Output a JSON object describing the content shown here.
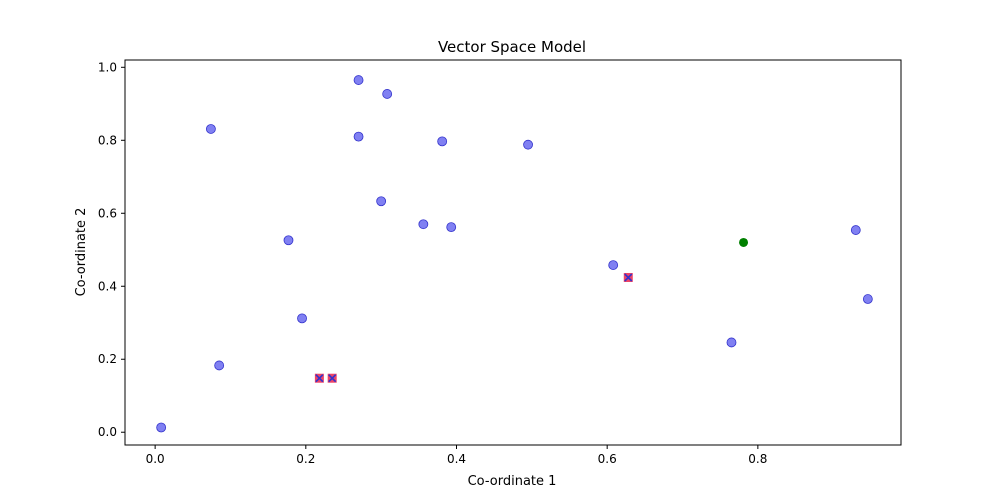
{
  "chart_data": {
    "type": "scatter",
    "title": "Vector Space Model",
    "xlabel": "Co-ordinate 1",
    "ylabel": "Co-ordinate 2",
    "xlim": [
      -0.04,
      0.99
    ],
    "ylim": [
      -0.035,
      1.02
    ],
    "xticks": [
      "0.0",
      "0.2",
      "0.4",
      "0.6",
      "0.8"
    ],
    "yticks": [
      "0.0",
      "0.2",
      "0.4",
      "0.6",
      "0.8",
      "1.0"
    ],
    "grid": false,
    "series": [
      {
        "marker": "circle",
        "color": "#5555ee",
        "points": [
          [
            0.008,
            0.013
          ],
          [
            0.085,
            0.183
          ],
          [
            0.074,
            0.831
          ],
          [
            0.177,
            0.526
          ],
          [
            0.195,
            0.312
          ],
          [
            0.27,
            0.965
          ],
          [
            0.27,
            0.81
          ],
          [
            0.308,
            0.927
          ],
          [
            0.3,
            0.633
          ],
          [
            0.356,
            0.57
          ],
          [
            0.381,
            0.797
          ],
          [
            0.393,
            0.562
          ],
          [
            0.495,
            0.788
          ],
          [
            0.608,
            0.458
          ],
          [
            0.765,
            0.246
          ],
          [
            0.93,
            0.554
          ],
          [
            0.946,
            0.365
          ]
        ]
      },
      {
        "marker": "square-x",
        "color": "#ee4466",
        "points": [
          [
            0.218,
            0.148
          ],
          [
            0.235,
            0.148
          ],
          [
            0.628,
            0.424
          ]
        ]
      },
      {
        "marker": "circle",
        "color": "#008000",
        "points": [
          [
            0.781,
            0.52
          ]
        ]
      }
    ]
  }
}
